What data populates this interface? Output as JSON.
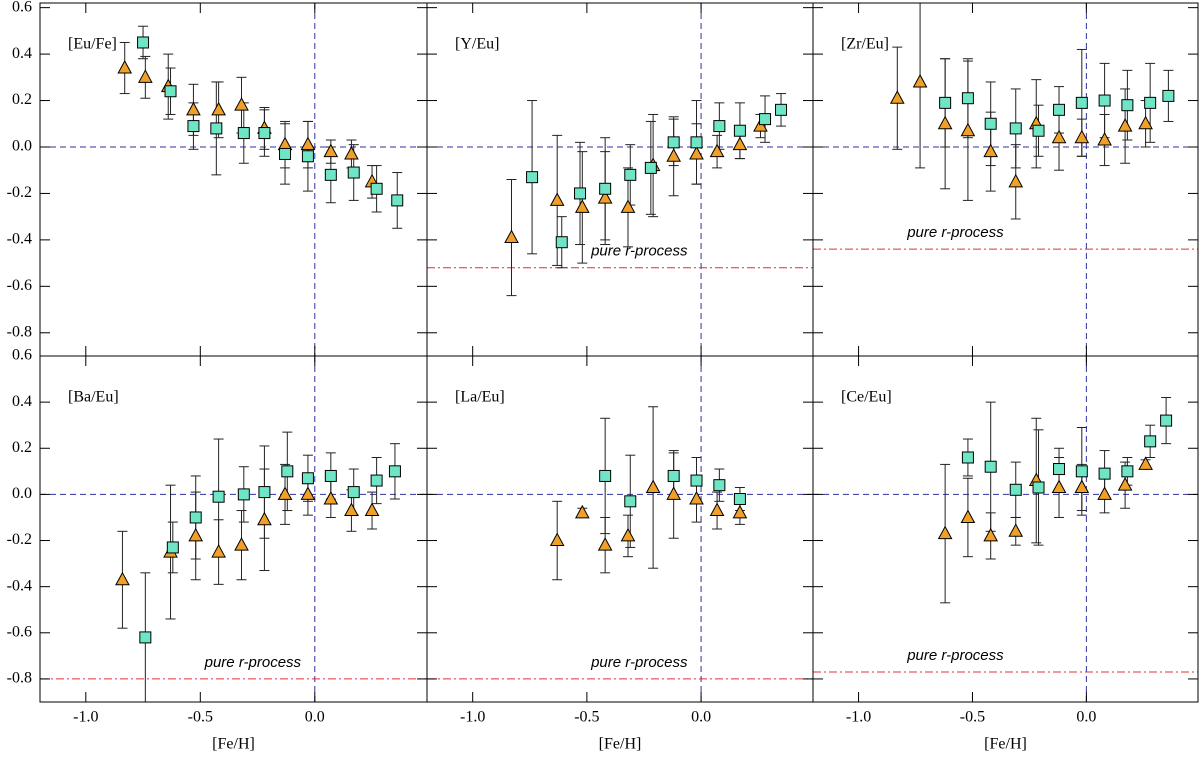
{
  "chart_data": [
    {
      "type": "scatter",
      "title": "[Eu/Fe]",
      "xlim": [
        -1.2,
        0.49
      ],
      "ylim": [
        -0.9,
        0.62
      ],
      "yticks": [
        0.6,
        0.4,
        0.2,
        {
          "value": 0,
          "label": "0.0"
        },
        -0.2,
        -0.4,
        -0.6,
        -0.8
      ],
      "hline": 0,
      "vline": 0,
      "series": [
        {
          "marker": "triangle",
          "color": "#f0a028",
          "x": [
            -0.83,
            -0.74,
            -0.64,
            -0.53,
            -0.42,
            -0.32,
            -0.22,
            -0.13,
            -0.03,
            0.07,
            0.16,
            0.25
          ],
          "values": [
            0.34,
            0.3,
            0.26,
            0.16,
            0.16,
            0.18,
            0.08,
            0.01,
            0.01,
            -0.02,
            -0.03,
            -0.15
          ],
          "errors": [
            0.11,
            0.09,
            0.14,
            0.11,
            0.12,
            0.12,
            0.09,
            0.1,
            0.1,
            0.05,
            0.06,
            0.07
          ]
        },
        {
          "marker": "square",
          "color": "#6ee6c6",
          "x": [
            -0.75,
            -0.63,
            -0.53,
            -0.43,
            -0.31,
            -0.22,
            -0.13,
            -0.03,
            0.07,
            0.17,
            0.27,
            0.36
          ],
          "values": [
            0.45,
            0.24,
            0.09,
            0.08,
            0.06,
            0.06,
            -0.03,
            -0.04,
            -0.12,
            -0.11,
            -0.18,
            -0.23
          ],
          "errors": [
            0.07,
            0.1,
            0.1,
            0.2,
            0.13,
            0.1,
            0.13,
            0.15,
            0.12,
            0.12,
            0.1,
            0.12
          ]
        }
      ]
    },
    {
      "type": "scatter",
      "title": "[Y/Eu]",
      "xlim": [
        -1.2,
        0.49
      ],
      "ylim": [
        -0.9,
        0.62
      ],
      "hline": 0,
      "vline": 0,
      "r_process": -0.52,
      "r_process_label": "pure r-process",
      "series": [
        {
          "marker": "triangle",
          "color": "#f0a028",
          "x": [
            -0.83,
            -0.63,
            -0.52,
            -0.42,
            -0.32,
            -0.21,
            -0.12,
            -0.02,
            0.07,
            0.17,
            0.26
          ],
          "values": [
            -0.39,
            -0.23,
            -0.26,
            -0.22,
            -0.26,
            -0.08,
            -0.04,
            -0.03,
            -0.02,
            0.01,
            0.09
          ],
          "errors": [
            0.25,
            0.28,
            0.24,
            0.2,
            0.17,
            0.22,
            0.17,
            0.13,
            0.07,
            0.06,
            0.05
          ]
        },
        {
          "marker": "square",
          "color": "#6ee6c6",
          "x": [
            -0.74,
            -0.61,
            -0.53,
            -0.42,
            -0.31,
            -0.22,
            -0.12,
            -0.02,
            0.08,
            0.17,
            0.28,
            0.35
          ],
          "values": [
            -0.13,
            -0.41,
            -0.2,
            -0.18,
            -0.12,
            -0.09,
            0.02,
            0.02,
            0.09,
            0.07,
            0.12,
            0.16
          ],
          "errors": [
            0.33,
            0.11,
            0.22,
            0.22,
            0.13,
            0.2,
            0.1,
            0.18,
            0.1,
            0.12,
            0.1,
            0.07
          ]
        }
      ]
    },
    {
      "type": "scatter",
      "title": "[Zr/Eu]",
      "xlim": [
        -1.2,
        0.49
      ],
      "ylim": [
        -0.9,
        0.62
      ],
      "hline": 0,
      "vline": 0,
      "r_process": -0.44,
      "r_process_label": "pure r-process",
      "series": [
        {
          "marker": "triangle",
          "color": "#f0a028",
          "x": [
            -0.83,
            -0.73,
            -0.62,
            -0.52,
            -0.42,
            -0.31,
            -0.22,
            -0.12,
            -0.02,
            0.08,
            0.17,
            0.26
          ],
          "values": [
            0.21,
            0.28,
            0.1,
            0.07,
            -0.02,
            -0.15,
            0.1,
            0.04,
            0.04,
            0.03,
            0.09,
            0.1
          ],
          "errors": [
            0.22,
            0.37,
            0.28,
            0.3,
            0.17,
            0.16,
            0.19,
            0.14,
            0.08,
            0.11,
            0.16,
            0.1
          ]
        },
        {
          "marker": "square",
          "color": "#6ee6c6",
          "x": [
            -0.62,
            -0.52,
            -0.42,
            -0.31,
            -0.21,
            -0.12,
            -0.02,
            0.08,
            0.18,
            0.28,
            0.36
          ],
          "values": [
            0.19,
            0.21,
            0.1,
            0.08,
            0.07,
            0.16,
            0.19,
            0.2,
            0.18,
            0.19,
            0.22
          ],
          "errors": [
            0.19,
            0.17,
            0.18,
            0.17,
            0.11,
            0.1,
            0.23,
            0.16,
            0.15,
            0.17,
            0.11
          ]
        }
      ]
    },
    {
      "type": "scatter",
      "title": "[Ba/Eu]",
      "xlim": [
        -1.2,
        0.49
      ],
      "ylim": [
        -0.9,
        0.6
      ],
      "yticks": [
        0.6,
        0.4,
        0.2,
        {
          "value": 0,
          "label": "0.0"
        },
        -0.2,
        -0.4,
        -0.6,
        -0.8
      ],
      "xticks": [
        {
          "value": -1,
          "label": "-1.0"
        },
        -0.5,
        {
          "value": 0,
          "label": "0.0"
        }
      ],
      "xlabel": "[Fe/H]",
      "hline": 0,
      "vline": 0,
      "r_process": -0.8,
      "r_process_label": "pure r-process",
      "series": [
        {
          "marker": "triangle",
          "color": "#f0a028",
          "x": [
            -0.84,
            -0.63,
            -0.52,
            -0.42,
            -0.32,
            -0.22,
            -0.13,
            -0.03,
            0.07,
            0.16,
            0.25
          ],
          "values": [
            -0.37,
            -0.25,
            -0.18,
            -0.25,
            -0.22,
            -0.11,
            0.0,
            0.0,
            -0.02,
            -0.07,
            -0.07
          ],
          "errors": [
            0.21,
            0.29,
            0.19,
            0.14,
            0.15,
            0.22,
            0.13,
            0.09,
            0.08,
            0.09,
            0.08
          ]
        },
        {
          "marker": "square",
          "color": "#6ee6c6",
          "x": [
            -0.74,
            -0.62,
            -0.52,
            -0.42,
            -0.31,
            -0.22,
            -0.12,
            -0.03,
            0.07,
            0.17,
            0.27,
            0.35
          ],
          "values": [
            -0.62,
            -0.23,
            -0.1,
            -0.01,
            0.0,
            0.01,
            0.1,
            0.07,
            0.08,
            0.01,
            0.06,
            0.1
          ],
          "errors": [
            0.28,
            0.11,
            0.18,
            0.25,
            0.12,
            0.2,
            0.17,
            0.1,
            0.1,
            0.1,
            0.1,
            0.12
          ]
        }
      ]
    },
    {
      "type": "scatter",
      "title": "[La/Eu]",
      "xlim": [
        -1.2,
        0.49
      ],
      "ylim": [
        -0.9,
        0.6
      ],
      "xticks": [
        {
          "value": -1,
          "label": "-1.0"
        },
        -0.5,
        {
          "value": 0,
          "label": "0.0"
        }
      ],
      "xlabel": "[Fe/H]",
      "hline": 0,
      "vline": 0,
      "r_process": -0.8,
      "r_process_label": "pure r-process",
      "series": [
        {
          "marker": "triangle",
          "color": "#f0a028",
          "x": [
            -0.63,
            -0.52,
            -0.42,
            -0.32,
            -0.21,
            -0.12,
            -0.02,
            0.07,
            0.17
          ],
          "values": [
            -0.2,
            -0.08,
            -0.22,
            -0.18,
            0.03,
            0.0,
            -0.02,
            -0.07,
            -0.08
          ],
          "errors": [
            0.17,
            0.02,
            0.12,
            0.09,
            0.35,
            0.19,
            0.1,
            0.08,
            0.05
          ]
        },
        {
          "marker": "square",
          "color": "#6ee6c6",
          "x": [
            -0.42,
            -0.31,
            -0.12,
            -0.02,
            0.08,
            0.17
          ],
          "values": [
            0.08,
            -0.03,
            0.08,
            0.06,
            0.04,
            -0.02
          ],
          "errors": [
            0.25,
            0.2,
            0.1,
            0.1,
            0.07,
            0.05
          ]
        }
      ]
    },
    {
      "type": "scatter",
      "title": "[Ce/Eu]",
      "xlim": [
        -1.2,
        0.49
      ],
      "ylim": [
        -0.9,
        0.6
      ],
      "xticks": [
        {
          "value": -1,
          "label": "-1.0"
        },
        -0.5,
        {
          "value": 0,
          "label": "0.0"
        }
      ],
      "xlabel": "[Fe/H]",
      "hline": 0,
      "vline": 0,
      "r_process": -0.77,
      "r_process_label": "pure r-process",
      "series": [
        {
          "marker": "triangle",
          "color": "#f0a028",
          "x": [
            -0.62,
            -0.52,
            -0.42,
            -0.31,
            -0.22,
            -0.12,
            -0.02,
            0.08,
            0.17,
            0.26
          ],
          "values": [
            -0.17,
            -0.1,
            -0.18,
            -0.16,
            0.06,
            0.03,
            0.03,
            0.0,
            0.04,
            0.13
          ],
          "errors": [
            0.3,
            0.17,
            0.1,
            0.06,
            0.27,
            0.13,
            0.1,
            0.08,
            0.1,
            0.02
          ]
        },
        {
          "marker": "square",
          "color": "#6ee6c6",
          "x": [
            -0.52,
            -0.42,
            -0.31,
            -0.21,
            -0.12,
            -0.02,
            0.08,
            0.18,
            0.28,
            0.35
          ],
          "values": [
            0.16,
            0.12,
            0.02,
            0.03,
            0.11,
            0.1,
            0.09,
            0.1,
            0.23,
            0.32
          ],
          "errors": [
            0.08,
            0.28,
            0.12,
            0.25,
            0.09,
            0.19,
            0.1,
            0.06,
            0.07,
            0.1
          ]
        }
      ]
    }
  ]
}
